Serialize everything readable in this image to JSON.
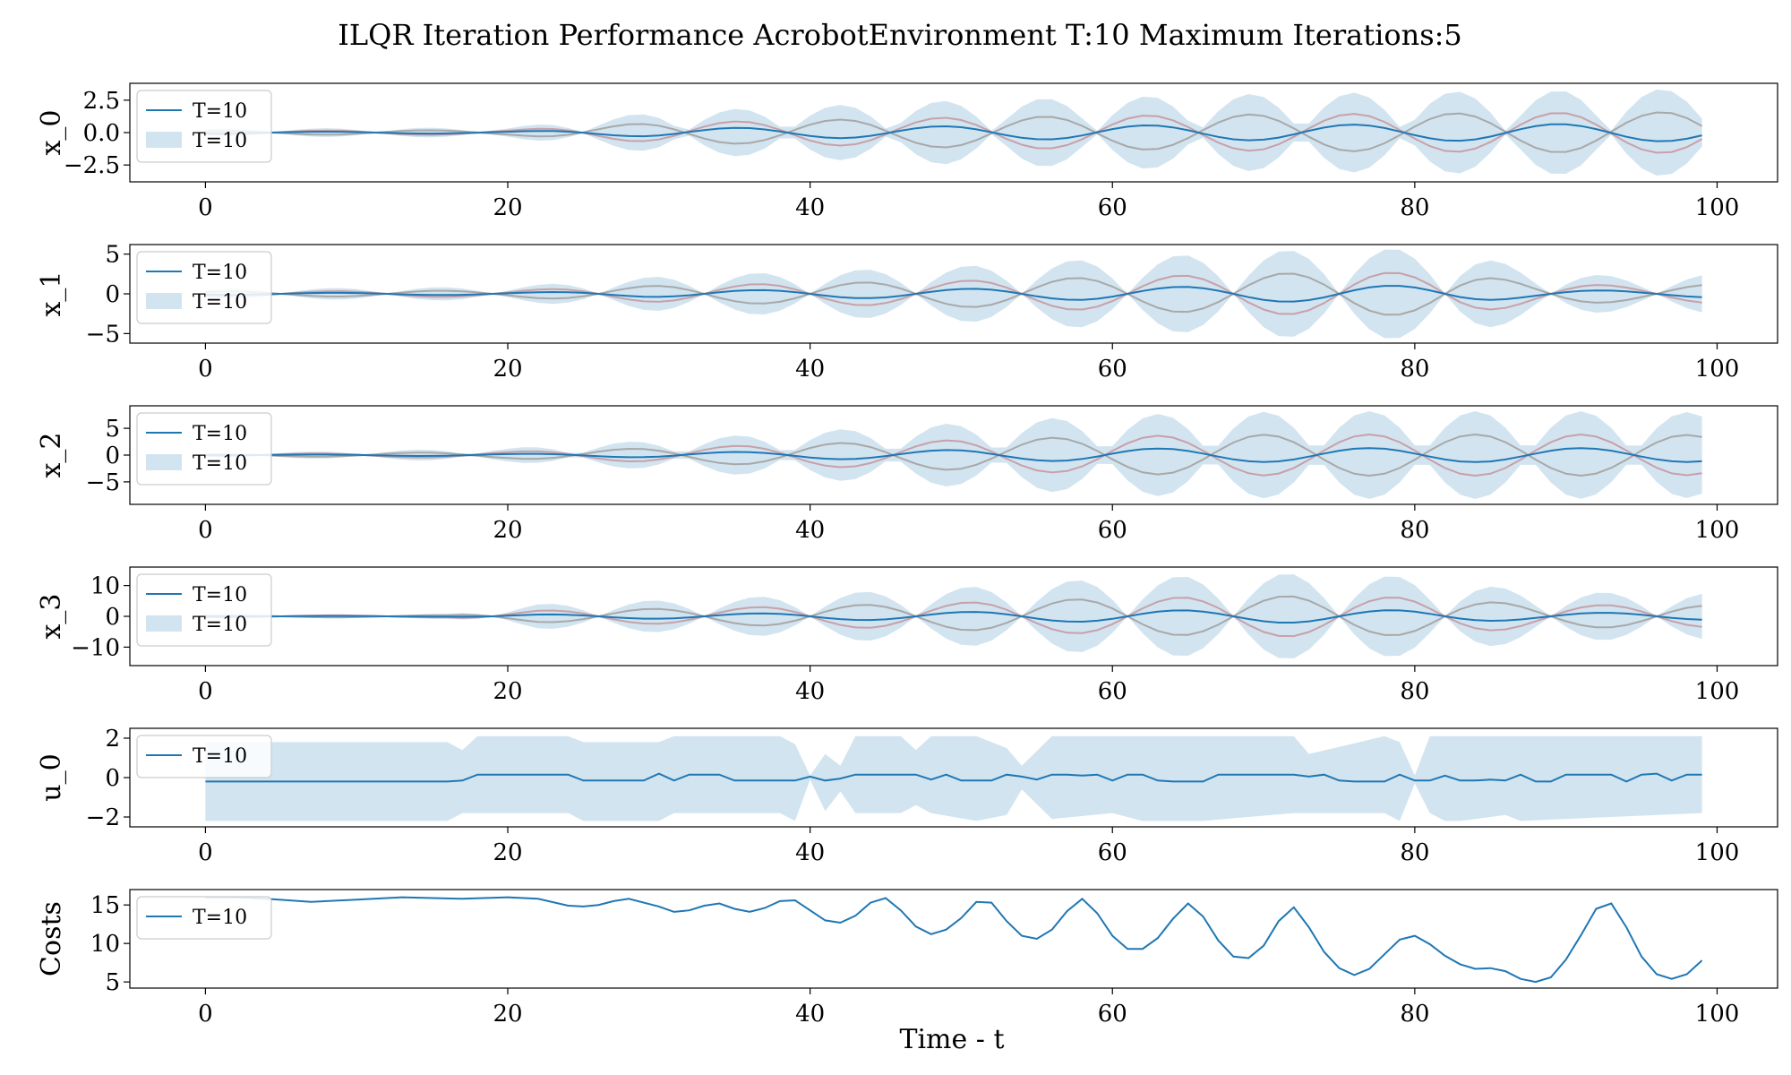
{
  "figure": {
    "title": "ILQR Iteration Performance AcrobotEnvironment T:10 Maximum Iterations:5",
    "xlabel": "Time - t"
  },
  "colors": {
    "mean_line": "#1f77b4",
    "band_fill": "#1f77b4",
    "upper_line": "#c8a0a8",
    "lower_line": "#a8a8a8"
  },
  "chart_data": [
    {
      "type": "line",
      "ylabel": "x_0",
      "xlim": [
        -5,
        104
      ],
      "ylim": [
        -3.8,
        3.8
      ],
      "xticks": [
        0,
        20,
        40,
        60,
        80,
        100
      ],
      "yticks": [
        2.5,
        0.0,
        -2.5
      ],
      "ytick_labels": [
        "2.5",
        "0.0",
        "−2.5"
      ],
      "x_range": [
        0,
        99
      ],
      "period": 13.6,
      "phase_zero": 4.5,
      "mean_amp_ratio": 0.2,
      "envelope": [
        [
          0,
          0.3
        ],
        [
          20,
          0.4
        ],
        [
          30,
          1.6
        ],
        [
          50,
          2.5
        ],
        [
          70,
          3.0
        ],
        [
          100,
          3.4
        ]
      ],
      "legend": [
        "T=10",
        "T=10"
      ]
    },
    {
      "type": "line",
      "ylabel": "x_1",
      "xlim": [
        -5,
        104
      ],
      "ylim": [
        -6.2,
        6.2
      ],
      "xticks": [
        0,
        20,
        40,
        60,
        80,
        100
      ],
      "yticks": [
        5,
        0,
        -5
      ],
      "ytick_labels": [
        "5",
        "0",
        "−5"
      ],
      "x_range": [
        0,
        99
      ],
      "period": 14.0,
      "phase_zero": 5.0,
      "mean_amp_ratio": 0.18,
      "envelope": [
        [
          0,
          0.6
        ],
        [
          20,
          0.9
        ],
        [
          30,
          2.2
        ],
        [
          50,
          3.5
        ],
        [
          60,
          4.5
        ],
        [
          75,
          5.8
        ],
        [
          82,
          5.6
        ],
        [
          88,
          3.0
        ],
        [
          95,
          2.0
        ],
        [
          99,
          2.4
        ]
      ],
      "legend": [
        "T=10",
        "T=10"
      ]
    },
    {
      "type": "line",
      "ylabel": "x_2",
      "xlim": [
        -5,
        104
      ],
      "ylim": [
        -9.2,
        9.2
      ],
      "xticks": [
        0,
        20,
        40,
        60,
        80,
        100
      ],
      "yticks": [
        5,
        0,
        -5
      ],
      "ytick_labels": [
        "5",
        "0",
        "−5"
      ],
      "x_range": [
        0,
        99
      ],
      "period": 14.0,
      "phase_zero": 3.5,
      "mean_amp_ratio": 0.16,
      "envelope": [
        [
          0,
          0.3
        ],
        [
          20,
          1.3
        ],
        [
          30,
          2.8
        ],
        [
          40,
          4.5
        ],
        [
          60,
          7.5
        ],
        [
          72,
          8.2
        ],
        [
          90,
          8.2
        ],
        [
          99,
          8.0
        ]
      ],
      "legend": [
        "T=10",
        "T=10"
      ]
    },
    {
      "type": "line",
      "ylabel": "x_3",
      "xlim": [
        -5,
        104
      ],
      "ylim": [
        -16,
        16
      ],
      "xticks": [
        0,
        20,
        40,
        60,
        80,
        100
      ],
      "yticks": [
        10,
        0,
        -10
      ],
      "ytick_labels": [
        "10",
        "0",
        "−10"
      ],
      "x_range": [
        0,
        99
      ],
      "period": 14.0,
      "phase_zero": 5.0,
      "mean_amp_ratio": 0.15,
      "envelope": [
        [
          0,
          0.6
        ],
        [
          16,
          0.8
        ],
        [
          22,
          4.0
        ],
        [
          35,
          6.0
        ],
        [
          50,
          9.5
        ],
        [
          60,
          12.5
        ],
        [
          72,
          14.0
        ],
        [
          80,
          13.0
        ],
        [
          88,
          8.0
        ],
        [
          99,
          7.5
        ]
      ],
      "legend": [
        "T=10",
        "T=10"
      ]
    },
    {
      "type": "line",
      "ylabel": "u_0",
      "xlim": [
        -5,
        104
      ],
      "ylim": [
        -2.5,
        2.5
      ],
      "xticks": [
        0,
        20,
        40,
        60,
        80,
        100
      ],
      "yticks": [
        2,
        0,
        -2
      ],
      "ytick_labels": [
        "2",
        "0",
        "−2"
      ],
      "x": [
        0,
        16,
        17,
        18,
        24,
        25,
        29,
        30,
        31,
        32,
        34,
        35,
        39,
        40,
        41,
        42,
        43,
        47,
        48,
        49,
        50,
        52,
        53,
        54,
        55,
        56,
        57,
        58,
        59,
        60,
        61,
        62,
        63,
        64,
        66,
        67,
        72,
        73,
        74,
        75,
        76,
        78,
        79,
        80,
        81,
        82,
        83,
        84,
        85,
        86,
        87,
        88,
        89,
        90,
        93,
        94,
        95,
        96,
        97,
        98,
        99
      ],
      "y": [
        -0.2,
        -0.2,
        -0.15,
        0.15,
        0.15,
        -0.15,
        -0.15,
        0.2,
        -0.15,
        0.15,
        0.15,
        -0.15,
        -0.15,
        0.05,
        -0.15,
        -0.05,
        0.15,
        0.15,
        -0.1,
        0.15,
        -0.15,
        -0.15,
        0.15,
        0.05,
        -0.1,
        0.15,
        0.15,
        0.1,
        0.15,
        -0.15,
        0.15,
        0.15,
        -0.15,
        -0.2,
        -0.2,
        0.15,
        0.15,
        0.05,
        0.15,
        -0.15,
        -0.2,
        -0.2,
        0.15,
        -0.15,
        -0.15,
        0.1,
        -0.15,
        -0.15,
        -0.1,
        -0.15,
        0.15,
        -0.2,
        -0.2,
        0.15,
        0.15,
        -0.2,
        0.15,
        0.2,
        -0.15,
        0.15,
        0.15
      ],
      "band": {
        "x": [
          0,
          16,
          17,
          18,
          24,
          25,
          30,
          31,
          38,
          39,
          40,
          41,
          42,
          43,
          46,
          47,
          48,
          51,
          53,
          54,
          56,
          60,
          62,
          65,
          66,
          72,
          73,
          78,
          79,
          80,
          81,
          82,
          83,
          86,
          87,
          99
        ],
        "upper": [
          1.8,
          1.8,
          1.4,
          2.1,
          2.1,
          1.8,
          1.8,
          2.1,
          2.1,
          1.7,
          0.1,
          1.2,
          0.6,
          2.1,
          2.1,
          1.4,
          2.1,
          2.1,
          1.5,
          0.6,
          2.1,
          2.1,
          2.1,
          2.1,
          2.1,
          2.1,
          1.2,
          2.1,
          1.8,
          0.1,
          2.1,
          2.1,
          2.1,
          2.1,
          2.1,
          2.1
        ],
        "lower": [
          -2.2,
          -2.2,
          -1.8,
          -1.8,
          -1.8,
          -2.2,
          -2.2,
          -1.8,
          -1.8,
          -2.2,
          -0.1,
          -1.7,
          -0.7,
          -1.8,
          -1.8,
          -1.4,
          -1.8,
          -2.2,
          -1.9,
          -0.6,
          -2.1,
          -1.8,
          -2.2,
          -2.2,
          -2.2,
          -1.8,
          -1.8,
          -1.8,
          -2.2,
          -0.3,
          -1.8,
          -2.2,
          -2.2,
          -1.9,
          -2.2,
          -1.8
        ]
      },
      "legend": [
        "T=10"
      ]
    },
    {
      "type": "line",
      "ylabel": "Costs",
      "xlim": [
        -5,
        104
      ],
      "ylim": [
        4.2,
        17
      ],
      "xticks": [
        0,
        20,
        40,
        60,
        80,
        100
      ],
      "yticks": [
        15,
        10,
        5
      ],
      "ytick_labels": [
        "15",
        "10",
        "5"
      ],
      "x": [
        0,
        2,
        4,
        7,
        10,
        13,
        17,
        20,
        22,
        24,
        25,
        26,
        27,
        28,
        30,
        31,
        32,
        33,
        34,
        35,
        36,
        37,
        38,
        39,
        41,
        42,
        43,
        44,
        45,
        46,
        47,
        48,
        49,
        50,
        51,
        52,
        53,
        54,
        55,
        56,
        57,
        58,
        59,
        60,
        61,
        62,
        63,
        64,
        65,
        66,
        67,
        68,
        69,
        70,
        71,
        72,
        73,
        74,
        75,
        76,
        77,
        78,
        79,
        80,
        81,
        82,
        83,
        84,
        85,
        86,
        87,
        88,
        89,
        90,
        91,
        92,
        93,
        94,
        95,
        96,
        97,
        98,
        99
      ],
      "y": [
        16,
        16,
        15.8,
        15.4,
        15.7,
        16,
        15.8,
        16,
        15.8,
        14.9,
        14.8,
        15,
        15.5,
        15.8,
        14.8,
        14.1,
        14.3,
        14.9,
        15.2,
        14.5,
        14.1,
        14.6,
        15.5,
        15.6,
        13,
        12.7,
        13.6,
        15.3,
        15.9,
        14.3,
        12.2,
        11.2,
        11.8,
        13.3,
        15.4,
        15.3,
        12.9,
        11,
        10.6,
        11.8,
        14.2,
        15.8,
        13.9,
        11,
        9.3,
        9.3,
        10.7,
        13.2,
        15.2,
        13.5,
        10.4,
        8.3,
        8.1,
        9.7,
        12.9,
        14.7,
        12.1,
        8.9,
        6.8,
        5.9,
        6.7,
        8.6,
        10.5,
        11,
        9.9,
        8.4,
        7.3,
        6.7,
        6.8,
        6.4,
        5.4,
        5,
        5.6,
        7.9,
        11.1,
        14.5,
        15.2,
        12.1,
        8.3,
        6,
        5.4,
        6,
        7.8
      ],
      "legend": [
        "T=10"
      ]
    }
  ]
}
